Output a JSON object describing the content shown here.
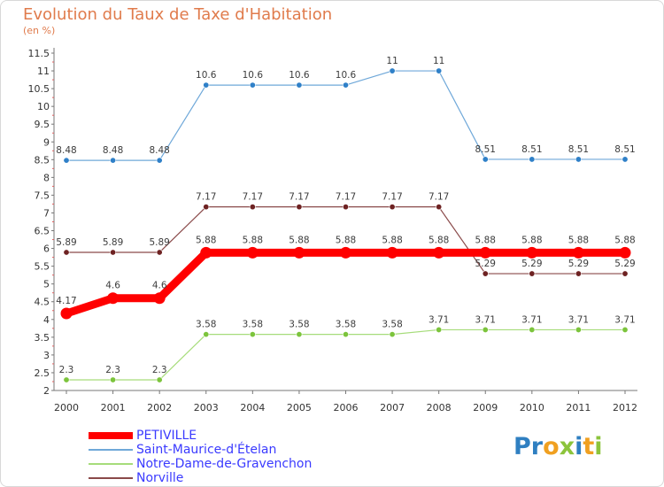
{
  "header": {
    "title": "Evolution du Taux de Taxe d'Habitation",
    "subtitle": "(en %)"
  },
  "logo": {
    "text": "Proxiti",
    "letters": [
      {
        "ch": "P",
        "color": "#2f7fc1"
      },
      {
        "ch": "r",
        "color": "#2f7fc1"
      },
      {
        "ch": "o",
        "color": "#f0a020"
      },
      {
        "ch": "x",
        "color": "#8cc43c"
      },
      {
        "ch": "i",
        "color": "#2f7fc1"
      },
      {
        "ch": "t",
        "color": "#f0a020"
      },
      {
        "ch": "i",
        "color": "#8cc43c"
      }
    ]
  },
  "chart_data": {
    "type": "line",
    "title": "Evolution du Taux de Taxe d'Habitation",
    "subtitle": "(en %)",
    "xlabel": "",
    "ylabel": "",
    "ylim": [
      2,
      11.5
    ],
    "yticks": [
      "2",
      "2.5",
      "3",
      "3.5",
      "4",
      "4.5",
      "5",
      "5.5",
      "6",
      "6.5",
      "7",
      "7.5",
      "8",
      "8.5",
      "9",
      "9.5",
      "10",
      "10.5",
      "11",
      "11.5"
    ],
    "categories": [
      "2000",
      "2001",
      "2002",
      "2003",
      "2004",
      "2005",
      "2006",
      "2007",
      "2008",
      "2009",
      "2010",
      "2011",
      "2012"
    ],
    "grid": false,
    "legend_position": "bottom-left",
    "series": [
      {
        "name": "PETIVILLE",
        "color": "#ff0000",
        "marker_color": "#ff0000",
        "width": "thick",
        "values": [
          4.17,
          4.6,
          4.6,
          5.88,
          5.88,
          5.88,
          5.88,
          5.88,
          5.88,
          5.88,
          5.88,
          5.88,
          5.88
        ],
        "labels": [
          "4.17",
          "4.6",
          "4.6",
          "5.88",
          "5.88",
          "5.88",
          "5.88",
          "5.88",
          "5.88",
          "5.88",
          "5.88",
          "5.88",
          "5.88"
        ]
      },
      {
        "name": "Saint-Maurice-d'Ételan",
        "color": "#6fa8d9",
        "marker_color": "#2f80c8",
        "width": "thin",
        "values": [
          8.48,
          8.48,
          8.48,
          10.6,
          10.6,
          10.6,
          10.6,
          11,
          11,
          8.51,
          8.51,
          8.51,
          8.51
        ],
        "labels": [
          "8.48",
          "8.48",
          "8.48",
          "10.6",
          "10.6",
          "10.6",
          "10.6",
          "11",
          "11",
          "8.51",
          "8.51",
          "8.51",
          "8.51"
        ]
      },
      {
        "name": "Notre-Dame-de-Gravenchon",
        "color": "#a6dc7a",
        "marker_color": "#7cc43c",
        "width": "thin",
        "values": [
          2.3,
          2.3,
          2.3,
          3.58,
          3.58,
          3.58,
          3.58,
          3.58,
          3.71,
          3.71,
          3.71,
          3.71,
          3.71
        ],
        "labels": [
          "2.3",
          "2.3",
          "2.3",
          "3.58",
          "3.58",
          "3.58",
          "3.58",
          "3.58",
          "3.71",
          "3.71",
          "3.71",
          "3.71",
          "3.71"
        ]
      },
      {
        "name": "Norville",
        "color": "#8a4a4a",
        "marker_color": "#6e2222",
        "width": "thin",
        "values": [
          5.89,
          5.89,
          5.89,
          7.17,
          7.17,
          7.17,
          7.17,
          7.17,
          7.17,
          5.29,
          5.29,
          5.29,
          5.29
        ],
        "labels": [
          "5.89",
          "5.89",
          "5.89",
          "7.17",
          "7.17",
          "7.17",
          "7.17",
          "7.17",
          "7.17",
          "5.29",
          "5.29",
          "5.29",
          "5.29"
        ]
      }
    ]
  }
}
